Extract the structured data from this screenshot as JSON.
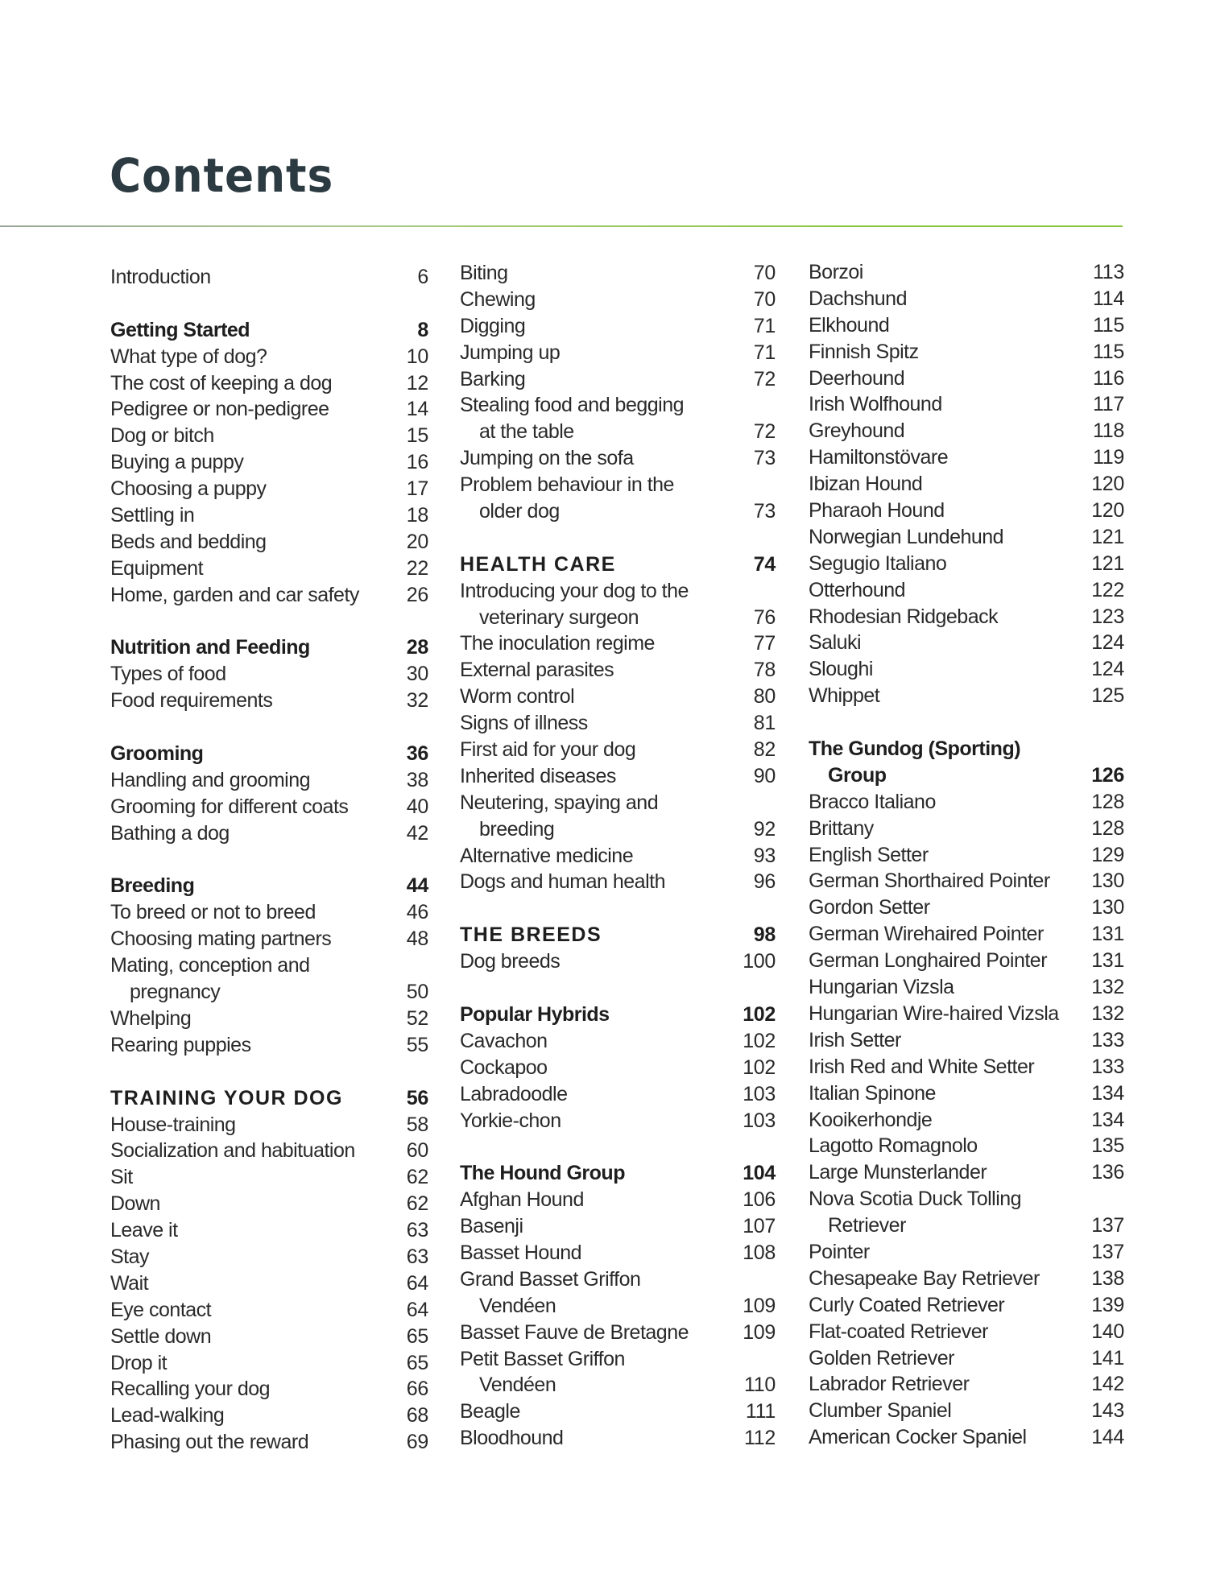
{
  "title": "Contents",
  "accent_color": "#8cc63f",
  "columns": [
    [
      {
        "text": "Introduction",
        "page": "6"
      },
      {},
      {
        "text": "Getting Started",
        "page": "8",
        "style": "h"
      },
      {
        "text": "What type of dog?",
        "page": "10"
      },
      {
        "text": "The cost of keeping a dog",
        "page": "12"
      },
      {
        "text": "Pedigree or non-pedigree",
        "page": "14"
      },
      {
        "text": "Dog or bitch",
        "page": "15"
      },
      {
        "text": "Buying a puppy",
        "page": "16"
      },
      {
        "text": "Choosing a puppy",
        "page": "17"
      },
      {
        "text": "Settling in",
        "page": "18"
      },
      {
        "text": "Beds and bedding",
        "page": "20"
      },
      {
        "text": "Equipment",
        "page": "22"
      },
      {
        "text": "Home, garden and car safety",
        "page": "26"
      },
      {},
      {
        "text": "Nutrition and Feeding",
        "page": "28",
        "style": "h"
      },
      {
        "text": "Types of food",
        "page": "30"
      },
      {
        "text": "Food requirements",
        "page": "32"
      },
      {},
      {
        "text": "Grooming",
        "page": "36",
        "style": "h"
      },
      {
        "text": "Handling and grooming",
        "page": "38"
      },
      {
        "text": "Grooming for different coats",
        "page": "40"
      },
      {
        "text": "Bathing a dog",
        "page": "42"
      },
      {},
      {
        "text": "Breeding",
        "page": "44",
        "style": "h"
      },
      {
        "text": "To breed or not to breed",
        "page": "46"
      },
      {
        "text": "Choosing mating partners",
        "page": "48"
      },
      {
        "text": "Mating, conception and",
        "page": ""
      },
      {
        "text": "pregnancy",
        "page": "50",
        "style": "i"
      },
      {
        "text": "Whelping",
        "page": "52"
      },
      {
        "text": "Rearing puppies",
        "page": "55"
      },
      {},
      {
        "text": "TRAINING YOUR DOG",
        "page": "56",
        "style": "cap"
      },
      {
        "text": "House-training",
        "page": "58"
      },
      {
        "text": "Socialization and habituation",
        "page": "60"
      },
      {
        "text": "Sit",
        "page": "62"
      },
      {
        "text": "Down",
        "page": "62"
      },
      {
        "text": "Leave it",
        "page": "63"
      },
      {
        "text": "Stay",
        "page": "63"
      },
      {
        "text": "Wait",
        "page": "64"
      },
      {
        "text": "Eye contact",
        "page": "64"
      },
      {
        "text": "Settle down",
        "page": "65"
      },
      {
        "text": "Drop it",
        "page": "65"
      },
      {
        "text": "Recalling your dog",
        "page": "66"
      },
      {
        "text": "Lead-walking",
        "page": "68"
      },
      {
        "text": "Phasing out the reward",
        "page": "69"
      }
    ],
    [
      {
        "text": "Biting",
        "page": "70"
      },
      {
        "text": "Chewing",
        "page": "70"
      },
      {
        "text": "Digging",
        "page": "71"
      },
      {
        "text": "Jumping up",
        "page": "71"
      },
      {
        "text": "Barking",
        "page": "72"
      },
      {
        "text": "Stealing food and begging",
        "page": ""
      },
      {
        "text": "at the table",
        "page": "72",
        "style": "i"
      },
      {
        "text": "Jumping on the sofa",
        "page": "73"
      },
      {
        "text": "Problem behaviour in the",
        "page": ""
      },
      {
        "text": "older dog",
        "page": "73",
        "style": "i"
      },
      {},
      {
        "text": "HEALTH CARE",
        "page": "74",
        "style": "cap"
      },
      {
        "text": "Introducing your dog to the",
        "page": ""
      },
      {
        "text": "veterinary surgeon",
        "page": "76",
        "style": "i"
      },
      {
        "text": "The inoculation regime",
        "page": "77"
      },
      {
        "text": "External parasites",
        "page": "78"
      },
      {
        "text": "Worm control",
        "page": "80"
      },
      {
        "text": "Signs of illness",
        "page": "81"
      },
      {
        "text": "First aid for your dog",
        "page": "82"
      },
      {
        "text": "Inherited diseases",
        "page": "90"
      },
      {
        "text": "Neutering, spaying and",
        "page": ""
      },
      {
        "text": "breeding",
        "page": "92",
        "style": "i"
      },
      {
        "text": "Alternative medicine",
        "page": "93"
      },
      {
        "text": "Dogs and human health",
        "page": "96"
      },
      {},
      {
        "text": "THE BREEDS",
        "page": "98",
        "style": "cap"
      },
      {
        "text": "Dog breeds",
        "page": "100"
      },
      {},
      {
        "text": "Popular Hybrids",
        "page": "102",
        "style": "h"
      },
      {
        "text": "Cavachon",
        "page": "102"
      },
      {
        "text": "Cockapoo",
        "page": "102"
      },
      {
        "text": "Labradoodle",
        "page": "103"
      },
      {
        "text": "Yorkie-chon",
        "page": "103"
      },
      {},
      {
        "text": "The Hound Group",
        "page": "104",
        "style": "h"
      },
      {
        "text": "Afghan Hound",
        "page": "106"
      },
      {
        "text": "Basenji",
        "page": "107"
      },
      {
        "text": "Basset Hound",
        "page": "108"
      },
      {
        "text": "Grand Basset Griffon",
        "page": ""
      },
      {
        "text": "Vendéen",
        "page": "109",
        "style": "i"
      },
      {
        "text": "Basset Fauve de Bretagne",
        "page": "109"
      },
      {
        "text": "Petit Basset Griffon",
        "page": ""
      },
      {
        "text": "Vendéen",
        "page": "110",
        "style": "i"
      },
      {
        "text": "Beagle",
        "page": "111"
      },
      {
        "text": "Bloodhound",
        "page": "112"
      }
    ],
    [
      {
        "text": "Borzoi",
        "page": "113"
      },
      {
        "text": "Dachshund",
        "page": "114"
      },
      {
        "text": "Elkhound",
        "page": "115"
      },
      {
        "text": "Finnish Spitz",
        "page": "115"
      },
      {
        "text": "Deerhound",
        "page": "116"
      },
      {
        "text": "Irish Wolfhound",
        "page": "117"
      },
      {
        "text": "Greyhound",
        "page": "118"
      },
      {
        "text": "Hamiltonstövare",
        "page": "119"
      },
      {
        "text": "Ibizan Hound",
        "page": "120"
      },
      {
        "text": "Pharaoh Hound",
        "page": "120"
      },
      {
        "text": "Norwegian Lundehund",
        "page": "121"
      },
      {
        "text": "Segugio Italiano",
        "page": "121"
      },
      {
        "text": "Otterhound",
        "page": "122"
      },
      {
        "text": "Rhodesian Ridgeback",
        "page": "123"
      },
      {
        "text": "Saluki",
        "page": "124"
      },
      {
        "text": "Sloughi",
        "page": "124"
      },
      {
        "text": "Whippet",
        "page": "125"
      },
      {},
      {
        "text": "The Gundog (Sporting)",
        "page": "",
        "style": "h"
      },
      {
        "text": "Group",
        "page": "126",
        "style": "h i"
      },
      {
        "text": "Bracco Italiano",
        "page": "128"
      },
      {
        "text": "Brittany",
        "page": "128"
      },
      {
        "text": "English Setter",
        "page": "129"
      },
      {
        "text": "German Shorthaired Pointer",
        "page": "130"
      },
      {
        "text": "Gordon Setter",
        "page": "130"
      },
      {
        "text": "German Wirehaired Pointer",
        "page": "131"
      },
      {
        "text": "German Longhaired Pointer",
        "page": "131"
      },
      {
        "text": "Hungarian Vizsla",
        "page": "132"
      },
      {
        "text": "Hungarian Wire-haired Vizsla",
        "page": "132"
      },
      {
        "text": "Irish Setter",
        "page": "133"
      },
      {
        "text": "Irish Red and White Setter",
        "page": "133"
      },
      {
        "text": "Italian Spinone",
        "page": "134"
      },
      {
        "text": "Kooikerhondje",
        "page": "134"
      },
      {
        "text": "Lagotto Romagnolo",
        "page": "135"
      },
      {
        "text": "Large Munsterlander",
        "page": "136"
      },
      {
        "text": "Nova Scotia Duck Tolling",
        "page": ""
      },
      {
        "text": "Retriever",
        "page": "137",
        "style": "i"
      },
      {
        "text": "Pointer",
        "page": "137"
      },
      {
        "text": "Chesapeake Bay Retriever",
        "page": "138"
      },
      {
        "text": "Curly Coated Retriever",
        "page": "139"
      },
      {
        "text": "Flat-coated Retriever",
        "page": "140"
      },
      {
        "text": "Golden Retriever",
        "page": "141"
      },
      {
        "text": "Labrador Retriever",
        "page": "142"
      },
      {
        "text": "Clumber Spaniel",
        "page": "143"
      },
      {
        "text": "American Cocker Spaniel",
        "page": "144"
      }
    ]
  ]
}
